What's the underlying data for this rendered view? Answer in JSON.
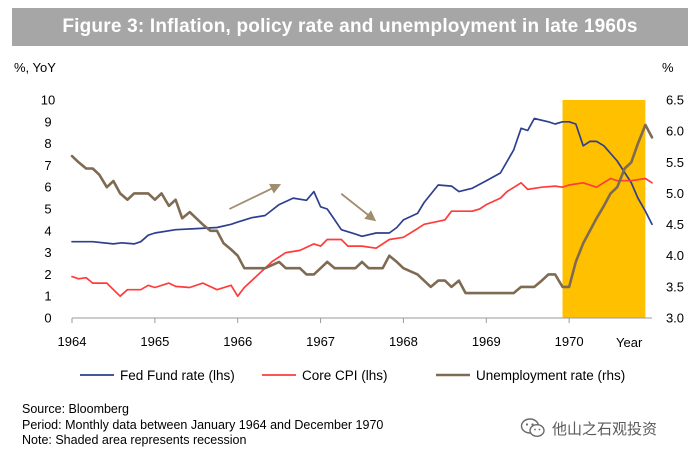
{
  "header": {
    "title": "Figure 3: Inflation, policy rate and unemployment in late 1960s"
  },
  "chart_data": {
    "type": "line",
    "left_axis_label": "%, YoY",
    "right_axis_label": "%",
    "x_axis_label": "Year",
    "x_ticks": [
      "1964",
      "1965",
      "1966",
      "1967",
      "1968",
      "1969",
      "1970"
    ],
    "y_left": {
      "min": 0,
      "max": 10,
      "ticks": [
        "0",
        "1",
        "2",
        "3",
        "4",
        "5",
        "6",
        "7",
        "8",
        "9",
        "10"
      ]
    },
    "y_right": {
      "min": 3.0,
      "max": 6.5,
      "ticks": [
        "3.0",
        "3.5",
        "4.0",
        "4.5",
        "5.0",
        "5.5",
        "6.0",
        "6.5"
      ]
    },
    "recession": {
      "start": 1969.92,
      "end": 1970.92,
      "color": "#ffc000"
    },
    "series": [
      {
        "name": "Fed Fund rate (lhs)",
        "axis": "left",
        "color": "#2e3f8f",
        "points": [
          [
            1964.0,
            3.5
          ],
          [
            1964.25,
            3.5
          ],
          [
            1964.5,
            3.4
          ],
          [
            1964.6,
            3.45
          ],
          [
            1964.75,
            3.4
          ],
          [
            1964.83,
            3.5
          ],
          [
            1964.92,
            3.8
          ],
          [
            1965.0,
            3.9
          ],
          [
            1965.25,
            4.05
          ],
          [
            1965.5,
            4.1
          ],
          [
            1965.75,
            4.15
          ],
          [
            1965.92,
            4.3
          ],
          [
            1966.0,
            4.4
          ],
          [
            1966.17,
            4.6
          ],
          [
            1966.33,
            4.7
          ],
          [
            1966.5,
            5.2
          ],
          [
            1966.67,
            5.5
          ],
          [
            1966.83,
            5.4
          ],
          [
            1966.92,
            5.8
          ],
          [
            1967.0,
            5.1
          ],
          [
            1967.08,
            5.0
          ],
          [
            1967.17,
            4.5
          ],
          [
            1967.25,
            4.05
          ],
          [
            1967.42,
            3.85
          ],
          [
            1967.5,
            3.75
          ],
          [
            1967.67,
            3.9
          ],
          [
            1967.83,
            3.9
          ],
          [
            1967.92,
            4.15
          ],
          [
            1968.0,
            4.5
          ],
          [
            1968.17,
            4.8
          ],
          [
            1968.25,
            5.3
          ],
          [
            1968.42,
            6.1
          ],
          [
            1968.58,
            6.05
          ],
          [
            1968.67,
            5.8
          ],
          [
            1968.83,
            5.95
          ],
          [
            1969.0,
            6.3
          ],
          [
            1969.17,
            6.65
          ],
          [
            1969.33,
            7.7
          ],
          [
            1969.42,
            8.7
          ],
          [
            1969.5,
            8.6
          ],
          [
            1969.58,
            9.15
          ],
          [
            1969.75,
            9.0
          ],
          [
            1969.83,
            8.9
          ],
          [
            1969.92,
            9.0
          ],
          [
            1970.0,
            9.0
          ],
          [
            1970.08,
            8.9
          ],
          [
            1970.17,
            7.9
          ],
          [
            1970.25,
            8.1
          ],
          [
            1970.33,
            8.1
          ],
          [
            1970.42,
            7.9
          ],
          [
            1970.58,
            7.2
          ],
          [
            1970.75,
            6.2
          ],
          [
            1970.83,
            5.5
          ],
          [
            1970.92,
            4.9
          ],
          [
            1971.0,
            4.3
          ]
        ]
      },
      {
        "name": "Core CPI (lhs)",
        "axis": "left",
        "color": "#ff3b3b",
        "points": [
          [
            1964.0,
            1.9
          ],
          [
            1964.08,
            1.8
          ],
          [
            1964.17,
            1.85
          ],
          [
            1964.25,
            1.6
          ],
          [
            1964.42,
            1.6
          ],
          [
            1964.58,
            1.0
          ],
          [
            1964.67,
            1.3
          ],
          [
            1964.83,
            1.3
          ],
          [
            1964.92,
            1.5
          ],
          [
            1965.0,
            1.4
          ],
          [
            1965.17,
            1.6
          ],
          [
            1965.25,
            1.45
          ],
          [
            1965.42,
            1.4
          ],
          [
            1965.58,
            1.6
          ],
          [
            1965.75,
            1.3
          ],
          [
            1965.92,
            1.5
          ],
          [
            1966.0,
            1.0
          ],
          [
            1966.08,
            1.4
          ],
          [
            1966.25,
            2.0
          ],
          [
            1966.42,
            2.6
          ],
          [
            1966.5,
            2.8
          ],
          [
            1966.58,
            3.0
          ],
          [
            1966.75,
            3.1
          ],
          [
            1966.92,
            3.4
          ],
          [
            1967.0,
            3.3
          ],
          [
            1967.08,
            3.6
          ],
          [
            1967.25,
            3.6
          ],
          [
            1967.33,
            3.3
          ],
          [
            1967.5,
            3.3
          ],
          [
            1967.67,
            3.2
          ],
          [
            1967.83,
            3.6
          ],
          [
            1968.0,
            3.7
          ],
          [
            1968.17,
            4.1
          ],
          [
            1968.25,
            4.3
          ],
          [
            1968.5,
            4.5
          ],
          [
            1968.58,
            4.9
          ],
          [
            1968.83,
            4.9
          ],
          [
            1968.92,
            5.0
          ],
          [
            1969.0,
            5.2
          ],
          [
            1969.17,
            5.5
          ],
          [
            1969.25,
            5.8
          ],
          [
            1969.42,
            6.2
          ],
          [
            1969.5,
            5.9
          ],
          [
            1969.67,
            6.0
          ],
          [
            1969.83,
            6.05
          ],
          [
            1969.92,
            6.0
          ],
          [
            1970.0,
            6.1
          ],
          [
            1970.17,
            6.2
          ],
          [
            1970.33,
            6.0
          ],
          [
            1970.5,
            6.4
          ],
          [
            1970.58,
            6.3
          ],
          [
            1970.75,
            6.3
          ],
          [
            1970.92,
            6.4
          ],
          [
            1971.0,
            6.2
          ]
        ]
      },
      {
        "name": "Unemployment rate (rhs)",
        "axis": "right",
        "color": "#7f6a52",
        "points": [
          [
            1964.0,
            5.6
          ],
          [
            1964.08,
            5.5
          ],
          [
            1964.17,
            5.4
          ],
          [
            1964.25,
            5.4
          ],
          [
            1964.33,
            5.3
          ],
          [
            1964.42,
            5.1
          ],
          [
            1964.5,
            5.2
          ],
          [
            1964.58,
            5.0
          ],
          [
            1964.67,
            4.9
          ],
          [
            1964.75,
            5.0
          ],
          [
            1964.83,
            5.0
          ],
          [
            1964.92,
            5.0
          ],
          [
            1965.0,
            4.9
          ],
          [
            1965.08,
            5.0
          ],
          [
            1965.17,
            4.8
          ],
          [
            1965.25,
            4.9
          ],
          [
            1965.33,
            4.6
          ],
          [
            1965.42,
            4.7
          ],
          [
            1965.5,
            4.6
          ],
          [
            1965.58,
            4.5
          ],
          [
            1965.67,
            4.4
          ],
          [
            1965.75,
            4.4
          ],
          [
            1965.83,
            4.2
          ],
          [
            1965.92,
            4.1
          ],
          [
            1966.0,
            4.0
          ],
          [
            1966.08,
            3.8
          ],
          [
            1966.25,
            3.8
          ],
          [
            1966.33,
            3.8
          ],
          [
            1966.5,
            3.9
          ],
          [
            1966.58,
            3.8
          ],
          [
            1966.75,
            3.8
          ],
          [
            1966.83,
            3.7
          ],
          [
            1966.92,
            3.7
          ],
          [
            1967.0,
            3.8
          ],
          [
            1967.08,
            3.9
          ],
          [
            1967.17,
            3.8
          ],
          [
            1967.42,
            3.8
          ],
          [
            1967.5,
            3.9
          ],
          [
            1967.58,
            3.8
          ],
          [
            1967.75,
            3.8
          ],
          [
            1967.83,
            4.0
          ],
          [
            1967.92,
            3.9
          ],
          [
            1968.0,
            3.8
          ],
          [
            1968.17,
            3.7
          ],
          [
            1968.33,
            3.5
          ],
          [
            1968.42,
            3.6
          ],
          [
            1968.5,
            3.6
          ],
          [
            1968.58,
            3.5
          ],
          [
            1968.67,
            3.6
          ],
          [
            1968.75,
            3.4
          ],
          [
            1968.83,
            3.4
          ],
          [
            1969.0,
            3.4
          ],
          [
            1969.25,
            3.4
          ],
          [
            1969.33,
            3.4
          ],
          [
            1969.42,
            3.5
          ],
          [
            1969.5,
            3.5
          ],
          [
            1969.58,
            3.5
          ],
          [
            1969.67,
            3.6
          ],
          [
            1969.75,
            3.7
          ],
          [
            1969.83,
            3.7
          ],
          [
            1969.92,
            3.5
          ],
          [
            1970.0,
            3.5
          ],
          [
            1970.08,
            3.9
          ],
          [
            1970.17,
            4.2
          ],
          [
            1970.25,
            4.4
          ],
          [
            1970.33,
            4.6
          ],
          [
            1970.42,
            4.8
          ],
          [
            1970.5,
            5.0
          ],
          [
            1970.58,
            5.1
          ],
          [
            1970.67,
            5.4
          ],
          [
            1970.75,
            5.5
          ],
          [
            1970.83,
            5.8
          ],
          [
            1970.92,
            6.1
          ],
          [
            1971.0,
            5.9
          ]
        ]
      }
    ],
    "annotations": [
      {
        "type": "arrow",
        "from": [
          1965.9,
          5.0
        ],
        "to": [
          1966.5,
          6.1
        ],
        "color": "#a08c6e"
      },
      {
        "type": "arrow",
        "from": [
          1967.25,
          5.7
        ],
        "to": [
          1967.65,
          4.5
        ],
        "color": "#a08c6e"
      }
    ],
    "legend": {
      "position": "bottom",
      "items": [
        "Fed Fund rate (lhs)",
        "Core CPI (lhs)",
        "Unemployment rate (rhs)"
      ]
    }
  },
  "notes": {
    "source": "Source: Bloomberg",
    "period": "Period: Monthly data between January 1964 and December 1970",
    "note": "Note: Shaded area represents recession"
  },
  "watermark": {
    "text": "他山之石观投资",
    "icon": "wechat-icon"
  }
}
